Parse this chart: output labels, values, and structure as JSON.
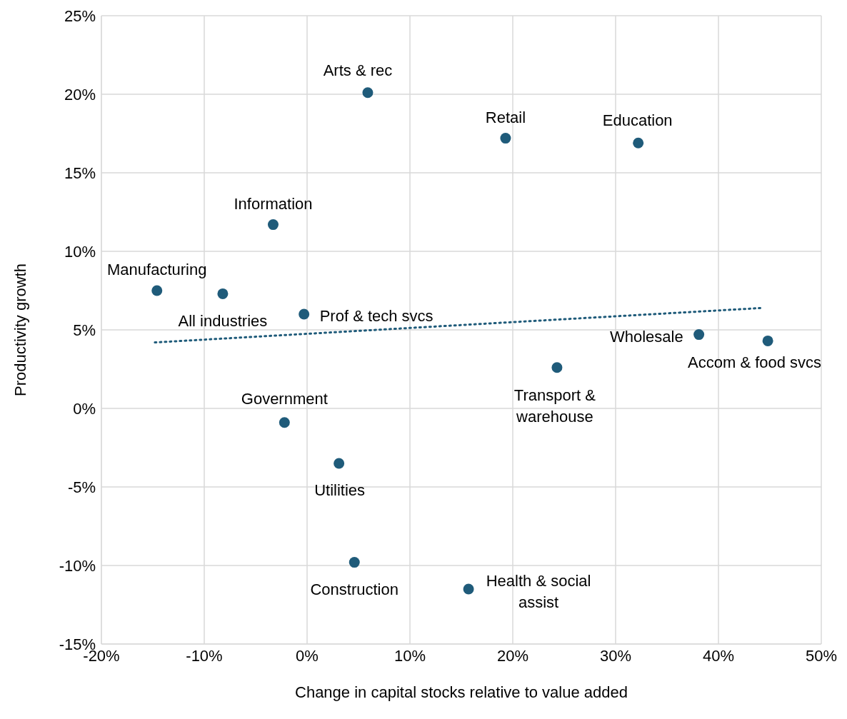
{
  "chart_data": {
    "type": "scatter",
    "xlabel": "Change in capital stocks relative to value added",
    "ylabel": "Productivity growth",
    "xlim": [
      -20,
      50
    ],
    "ylim": [
      -15,
      25
    ],
    "xticks": [
      {
        "value": -20,
        "label": "-20%"
      },
      {
        "value": -10,
        "label": "-10%"
      },
      {
        "value": 0,
        "label": "0%"
      },
      {
        "value": 10,
        "label": "10%"
      },
      {
        "value": 20,
        "label": "20%"
      },
      {
        "value": 30,
        "label": "30%"
      },
      {
        "value": 40,
        "label": "40%"
      },
      {
        "value": 50,
        "label": "50%"
      }
    ],
    "yticks": [
      {
        "value": -15,
        "label": "-15%"
      },
      {
        "value": -10,
        "label": "-10%"
      },
      {
        "value": -5,
        "label": "-5%"
      },
      {
        "value": 0,
        "label": "0%"
      },
      {
        "value": 5,
        "label": "5%"
      },
      {
        "value": 10,
        "label": "10%"
      },
      {
        "value": 15,
        "label": "15%"
      },
      {
        "value": 20,
        "label": "20%"
      },
      {
        "value": 25,
        "label": "25%"
      }
    ],
    "grid": true,
    "legend": false,
    "marker": "circle",
    "series": [
      {
        "color": "#1f5b7a",
        "x": [
          5.9,
          19.3,
          32.2,
          -3.3,
          -14.6,
          -8.2,
          -0.3,
          38.1,
          44.8,
          24.3,
          -2.2,
          3.1,
          4.6,
          15.7
        ],
        "values": [
          20.1,
          17.2,
          16.9,
          11.7,
          7.5,
          7.3,
          6.0,
          4.7,
          4.3,
          2.6,
          -0.9,
          -3.5,
          -9.8,
          -11.5
        ]
      },
      {
        "type": "line",
        "color": "#1f5b7a",
        "line_style": "dotted",
        "marker": "none",
        "x": [
          -14.8,
          44.4
        ],
        "values": [
          4.2,
          6.4
        ]
      }
    ],
    "annotations": [
      {
        "text": "Arts & rec",
        "x": 5.9,
        "y": 20.1
      },
      {
        "text": "Retail",
        "x": 19.3,
        "y": 17.2
      },
      {
        "text": "Education",
        "x": 32.2,
        "y": 16.9
      },
      {
        "text": "Information",
        "x": -3.3,
        "y": 11.7
      },
      {
        "text": "Manufacturing",
        "x": -14.6,
        "y": 7.5
      },
      {
        "text": "All industries",
        "x": -8.2,
        "y": 7.3
      },
      {
        "text": "Prof & tech svcs",
        "x": -0.3,
        "y": 6.0
      },
      {
        "text": "Wholesale",
        "x": 38.1,
        "y": 4.7
      },
      {
        "text": "Accom & food svcs",
        "x": 44.8,
        "y": 4.3
      },
      {
        "text": "Transport & warehouse",
        "x": 24.3,
        "y": 2.6
      },
      {
        "text": "Government",
        "x": -2.2,
        "y": -0.9
      },
      {
        "text": "Utilities",
        "x": 3.1,
        "y": -3.5
      },
      {
        "text": "Construction",
        "x": 4.6,
        "y": -9.8
      },
      {
        "text": "Health & social assist",
        "x": 15.7,
        "y": -11.5
      }
    ]
  }
}
